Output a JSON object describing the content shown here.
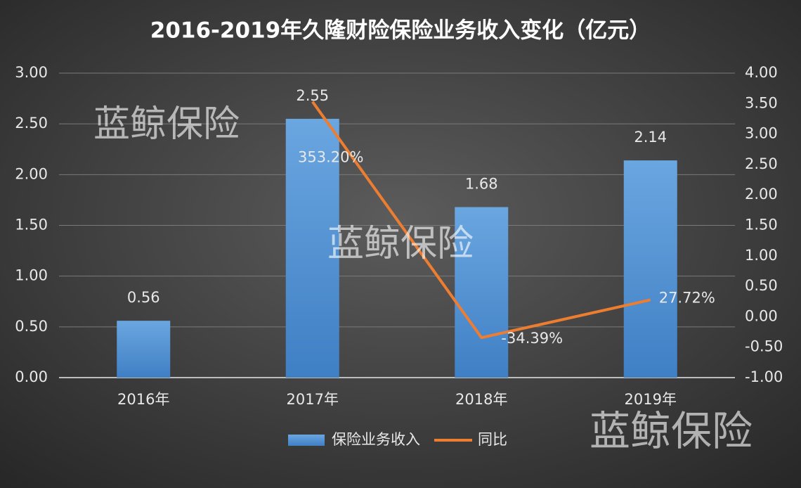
{
  "chart_data": {
    "type": "bar",
    "title": "2016-2019年久隆财险保险业务收入变化（亿元）",
    "categories": [
      "2016年",
      "2017年",
      "2018年",
      "2019年"
    ],
    "series": [
      {
        "name": "保险业务收入",
        "color": "#5b9bd5",
        "values": [
          0.56,
          2.55,
          1.68,
          2.14
        ]
      },
      {
        "name": "同比",
        "type": "line",
        "axis": "y2",
        "color": "#ed7d31",
        "values": [
          null,
          3.532,
          -0.3439,
          0.2772
        ],
        "value_labels": [
          null,
          "353.20%",
          "-34.39%",
          "27.72%"
        ]
      }
    ],
    "ylim": [
      0,
      3
    ],
    "yticks": [
      {
        "value": 0,
        "label": "0.00"
      },
      {
        "value": 0.5,
        "label": "0.50"
      },
      {
        "value": 1,
        "label": "1.00"
      },
      {
        "value": 1.5,
        "label": "1.50"
      },
      {
        "value": 2,
        "label": "2.00"
      },
      {
        "value": 2.5,
        "label": "2.50"
      },
      {
        "value": 3,
        "label": "3.00"
      }
    ],
    "y2lim": [
      -1,
      4
    ],
    "y2ticks": [
      {
        "value": -1,
        "label": "-1.00"
      },
      {
        "value": -0.5,
        "label": "-0.50"
      },
      {
        "value": 0,
        "label": "0.00"
      },
      {
        "value": 0.5,
        "label": "0.50"
      },
      {
        "value": 1,
        "label": "1.00"
      },
      {
        "value": 1.5,
        "label": "1.50"
      },
      {
        "value": 2,
        "label": "2.00"
      },
      {
        "value": 2.5,
        "label": "2.50"
      },
      {
        "value": 3,
        "label": "3.00"
      },
      {
        "value": 3.5,
        "label": "3.50"
      },
      {
        "value": 4,
        "label": "4.00"
      }
    ],
    "grid": true,
    "legend": "bottom",
    "watermarks": [
      "蓝鲸保险",
      "蓝鲸保险",
      "蓝鲸保险"
    ]
  }
}
